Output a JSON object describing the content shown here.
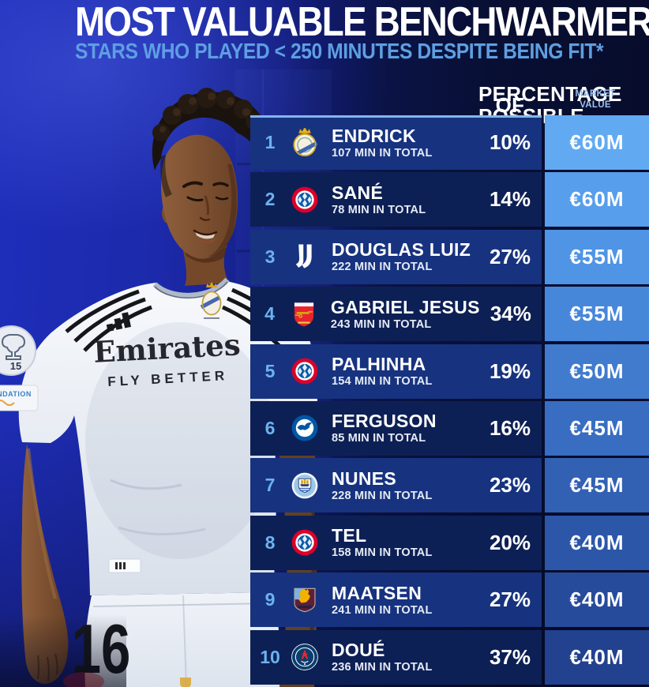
{
  "header": {
    "title": "MOST VALUABLE BENCHWARMERS",
    "subtitle": "STARS WHO PLAYED < 250 MINUTES DESPITE BEING FIT*"
  },
  "columns": {
    "pct_line1": "PERCENTAGE OF",
    "pct_line2": "POSSIBLE MIN",
    "value_line1": "MARKET",
    "value_line2": "VALUE"
  },
  "player_photo": {
    "shirt_sponsor": "Emirates",
    "shirt_sponsor_tagline": "FLY BETTER",
    "shirt_number": "16",
    "sleeve_badge_number": "15",
    "sleeve_patch_text": "NDATION"
  },
  "colors": {
    "rank": "#6cb2f0",
    "subtitle": "#5d9fe2",
    "header_labels": "#9fc2ee",
    "row_odd": "#17337f",
    "row_even": "#0d2055",
    "top_highlight_line": "#8abdf4"
  },
  "rows": [
    {
      "rank": "1",
      "club": "Real Madrid",
      "badge": "real-madrid-crest-icon",
      "name": "ENDRICK",
      "minutes": "107 MIN IN TOTAL",
      "pct": "10%",
      "value": "€60M",
      "value_bg": "#61aaf1",
      "row_bg": "#17337f"
    },
    {
      "rank": "2",
      "club": "Bayern Munich",
      "badge": "bayern-munich-crest-icon",
      "name": "SANÉ",
      "minutes": "78 MIN IN TOTAL",
      "pct": "14%",
      "value": "€60M",
      "value_bg": "#579eec",
      "row_bg": "#0d2055"
    },
    {
      "rank": "3",
      "club": "Juventus",
      "badge": "juventus-crest-icon",
      "name": "DOUGLAS LUIZ",
      "minutes": "222 MIN IN TOTAL",
      "pct": "27%",
      "value": "€55M",
      "value_bg": "#4f94e5",
      "row_bg": "#17337f"
    },
    {
      "rank": "4",
      "club": "Arsenal",
      "badge": "arsenal-crest-icon",
      "name": "GABRIEL JESUS",
      "minutes": "243 MIN IN TOTAL",
      "pct": "34%",
      "value": "€55M",
      "value_bg": "#4787da",
      "row_bg": "#0d2055"
    },
    {
      "rank": "5",
      "club": "Bayern Munich",
      "badge": "bayern-munich-crest-icon",
      "name": "PALHINHA",
      "minutes": "154 MIN IN TOTAL",
      "pct": "19%",
      "value": "€50M",
      "value_bg": "#407bce",
      "row_bg": "#17337f"
    },
    {
      "rank": "6",
      "club": "Brighton",
      "badge": "brighton-crest-icon",
      "name": "FERGUSON",
      "minutes": "85 MIN IN TOTAL",
      "pct": "16%",
      "value": "€45M",
      "value_bg": "#386dc1",
      "row_bg": "#0d2055"
    },
    {
      "rank": "7",
      "club": "Manchester City",
      "badge": "man-city-crest-icon",
      "name": "NUNES",
      "minutes": "228 MIN IN TOTAL",
      "pct": "23%",
      "value": "€45M",
      "value_bg": "#3261b4",
      "row_bg": "#17337f"
    },
    {
      "rank": "8",
      "club": "Bayern Munich",
      "badge": "bayern-munich-crest-icon",
      "name": "TEL",
      "minutes": "158 MIN IN TOTAL",
      "pct": "20%",
      "value": "€40M",
      "value_bg": "#2c56a8",
      "row_bg": "#0d2055"
    },
    {
      "rank": "9",
      "club": "Aston Villa",
      "badge": "aston-villa-crest-icon",
      "name": "MAATSEN",
      "minutes": "241 MIN IN TOTAL",
      "pct": "27%",
      "value": "€40M",
      "value_bg": "#274b9b",
      "row_bg": "#17337f"
    },
    {
      "rank": "10",
      "club": "Paris Saint-Germain",
      "badge": "psg-crest-icon",
      "name": "DOUÉ",
      "minutes": "236 MIN IN TOTAL",
      "pct": "37%",
      "value": "€40M",
      "value_bg": "#22418e",
      "row_bg": "#0d2055"
    }
  ]
}
